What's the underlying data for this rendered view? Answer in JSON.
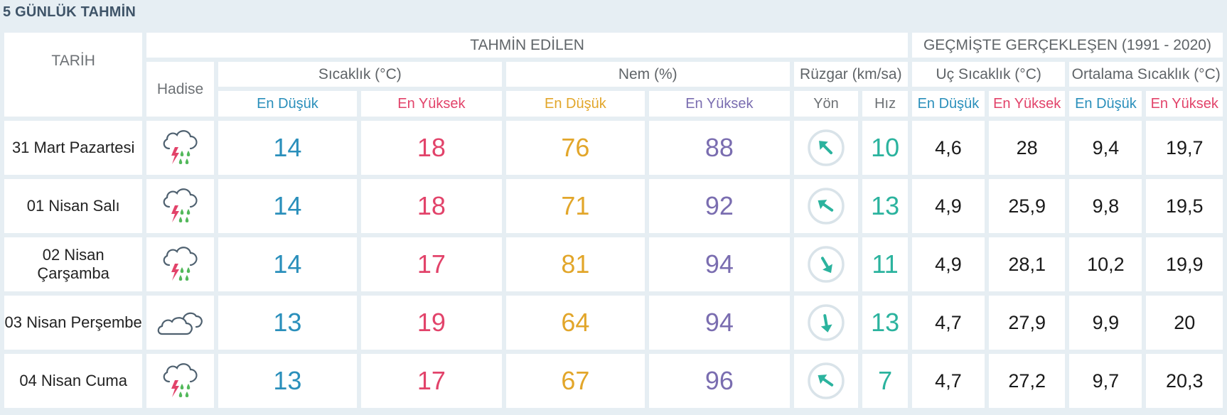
{
  "title": "5 GÜNLÜK TAHMİN",
  "headers": {
    "tarih": "TARİH",
    "tahmin_edilen": "TAHMİN EDİLEN",
    "gecmiste": "GEÇMİŞTE GERÇEKLEŞEN (1991 - 2020)",
    "hadise": "Hadise",
    "sicaklik": "Sıcaklık (°C)",
    "nem": "Nem (%)",
    "ruzgar": "Rüzgar (km/sa)",
    "uc_sicaklik": "Uç Sıcaklık (°C)",
    "ortalama_sicaklik": "Ortalama Sıcaklık (°C)",
    "en_dusuk": "En Düşük",
    "en_yuksek": "En Yüksek",
    "yon": "Yön",
    "hiz": "Hız"
  },
  "days": [
    {
      "date": "31 Mart Pazartesi",
      "icon": "thunderstorm-rain-icon",
      "temp_min": "14",
      "temp_max": "18",
      "hum_min": "76",
      "hum_max": "88",
      "wind_dir_deg": 135,
      "wind_speed": "10",
      "uc_min": "4,6",
      "uc_max": "28",
      "ort_min": "9,4",
      "ort_max": "19,7"
    },
    {
      "date": "01 Nisan Salı",
      "icon": "thunderstorm-rain-icon",
      "temp_min": "14",
      "temp_max": "18",
      "hum_min": "71",
      "hum_max": "92",
      "wind_dir_deg": 125,
      "wind_speed": "13",
      "uc_min": "4,9",
      "uc_max": "25,9",
      "ort_min": "9,8",
      "ort_max": "19,5"
    },
    {
      "date": "02 Nisan Çarşamba",
      "icon": "thunderstorm-rain-icon",
      "temp_min": "14",
      "temp_max": "17",
      "hum_min": "81",
      "hum_max": "94",
      "wind_dir_deg": -30,
      "wind_speed": "11",
      "uc_min": "4,9",
      "uc_max": "28,1",
      "ort_min": "10,2",
      "ort_max": "19,9"
    },
    {
      "date": "03 Nisan Perşembe",
      "icon": "cloudy-icon",
      "temp_min": "13",
      "temp_max": "19",
      "hum_min": "64",
      "hum_max": "94",
      "wind_dir_deg": -10,
      "wind_speed": "13",
      "uc_min": "4,7",
      "uc_max": "27,9",
      "ort_min": "9,9",
      "ort_max": "20"
    },
    {
      "date": "04 Nisan Cuma",
      "icon": "thunderstorm-rain-icon",
      "temp_min": "13",
      "temp_max": "17",
      "hum_min": "67",
      "hum_max": "96",
      "wind_dir_deg": 125,
      "wind_speed": "7",
      "uc_min": "4,7",
      "uc_max": "27,2",
      "ort_min": "9,7",
      "ort_max": "20,3"
    }
  ],
  "colors": {
    "min": "#2a8fbb",
    "max": "#e2436a",
    "hum_min": "#e2a62a",
    "hum_max": "#7a6db0",
    "wind": "#2bb39e"
  }
}
